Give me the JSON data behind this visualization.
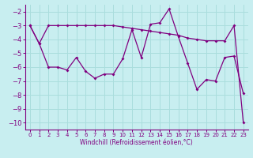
{
  "x": [
    0,
    1,
    2,
    3,
    4,
    5,
    6,
    7,
    8,
    9,
    10,
    11,
    12,
    13,
    14,
    15,
    16,
    17,
    18,
    19,
    20,
    21,
    22,
    23
  ],
  "line1": [
    -3,
    -4.3,
    -3.0,
    -3.0,
    -3.0,
    -3.0,
    -3.0,
    -3.0,
    -3.0,
    -3.0,
    -3.1,
    -3.2,
    -3.3,
    -3.4,
    -3.5,
    -3.6,
    -3.7,
    -3.9,
    -4.0,
    -4.1,
    -4.1,
    -4.1,
    -3.0,
    -10.0
  ],
  "line2": [
    -3,
    -4.3,
    -6.0,
    -6.0,
    -6.2,
    -5.3,
    -6.3,
    -6.8,
    -6.5,
    -6.5,
    -5.4,
    -3.3,
    -5.3,
    -2.9,
    -2.8,
    -1.8,
    -3.8,
    -5.7,
    -7.6,
    -6.9,
    -7.0,
    -5.3,
    -5.2,
    -7.9
  ],
  "color": "#800080",
  "bg_color": "#c8eef0",
  "grid_color": "#aadddd",
  "xlabel": "Windchill (Refroidissement éolien,°C)",
  "ylim": [
    -10.5,
    -1.5
  ],
  "xlim": [
    -0.5,
    23.5
  ],
  "yticks": [
    -10,
    -9,
    -8,
    -7,
    -6,
    -5,
    -4,
    -3,
    -2
  ],
  "xticks": [
    0,
    1,
    2,
    3,
    4,
    5,
    6,
    7,
    8,
    9,
    10,
    11,
    12,
    13,
    14,
    15,
    16,
    17,
    18,
    19,
    20,
    21,
    22,
    23
  ],
  "xlabel_fontsize": 5.5,
  "ytick_fontsize": 6,
  "xtick_fontsize": 5
}
